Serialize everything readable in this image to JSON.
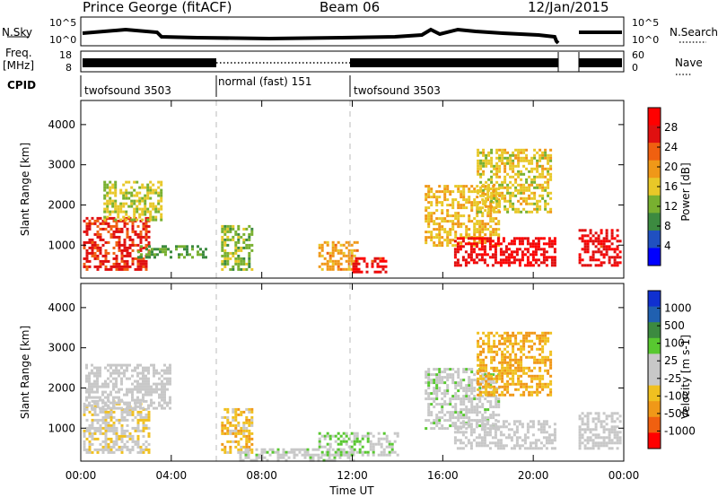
{
  "header": {
    "title": "Prince George (fitACF)",
    "beam": "Beam 06",
    "date": "12/Jan/2015"
  },
  "top_panels": {
    "nsky_label": "N.Sky",
    "nsearch_label": "N.Search",
    "noise_ticks": [
      "10^5",
      "10^0"
    ],
    "freq_label_1": "Freq.",
    "freq_label_2": "[MHz]",
    "freq_ticks": [
      "18",
      "8"
    ],
    "nave_label": "Nave",
    "nave_ticks": [
      "60",
      "0"
    ],
    "cpid_label": "CPID",
    "cpid_segments": [
      {
        "name": "twofsound 3503",
        "start_h": 0,
        "end_h": 6
      },
      {
        "name": "normal (fast) 151",
        "start_h": 6,
        "end_h": 12
      },
      {
        "name": "twofsound 3503",
        "start_h": 12,
        "end_h": 24
      }
    ]
  },
  "chart_data": [
    {
      "type": "heatmap",
      "title": "",
      "xlabel": "Time UT",
      "ylabel": "Slant Range [km]",
      "xlim": [
        0,
        24
      ],
      "ylim": [
        180,
        4600
      ],
      "x_ticks": [
        "00:00",
        "04:00",
        "08:00",
        "12:00",
        "16:00",
        "20:00",
        "00:00"
      ],
      "y_ticks": [
        1000,
        2000,
        3000,
        4000
      ],
      "colorbar": {
        "label": "Power [dB]",
        "ticks": [
          "28",
          "24",
          "20",
          "16",
          "12",
          "8",
          "4"
        ],
        "range": [
          0,
          30
        ]
      },
      "colormap": [
        "#0000ff",
        "#2050c0",
        "#3c8a40",
        "#78b030",
        "#e8c828",
        "#f09818",
        "#f06010",
        "#e01010",
        "#ff0000"
      ],
      "echo_regions": [
        {
          "t": [
            0.1,
            3.0
          ],
          "r": [
            400,
            1700
          ],
          "value": 24
        },
        {
          "t": [
            1.0,
            3.6
          ],
          "r": [
            1600,
            2600
          ],
          "value": 14
        },
        {
          "t": [
            2.5,
            5.5
          ],
          "r": [
            700,
            1000
          ],
          "value": 10
        },
        {
          "t": [
            6.2,
            7.6
          ],
          "r": [
            400,
            1500
          ],
          "value": 12
        },
        {
          "t": [
            10.5,
            12.2
          ],
          "r": [
            400,
            1100
          ],
          "value": 18
        },
        {
          "t": [
            12.0,
            13.5
          ],
          "r": [
            300,
            700
          ],
          "value": 26
        },
        {
          "t": [
            15.2,
            18.5
          ],
          "r": [
            1000,
            2500
          ],
          "value": 16
        },
        {
          "t": [
            16.5,
            21.0
          ],
          "r": [
            500,
            1200
          ],
          "value": 27
        },
        {
          "t": [
            17.5,
            20.8
          ],
          "r": [
            1800,
            3400
          ],
          "value": 15
        },
        {
          "t": [
            22.0,
            23.9
          ],
          "r": [
            500,
            1400
          ],
          "value": 26
        }
      ]
    },
    {
      "type": "heatmap",
      "title": "",
      "xlabel": "Time UT",
      "ylabel": "Slant Range [km]",
      "xlim": [
        0,
        24
      ],
      "ylim": [
        180,
        4600
      ],
      "x_ticks": [
        "00:00",
        "04:00",
        "08:00",
        "12:00",
        "16:00",
        "20:00",
        "00:00"
      ],
      "y_ticks": [
        1000,
        2000,
        3000,
        4000
      ],
      "colorbar": {
        "label": "Velocity [m s-1]",
        "ticks": [
          "1000",
          "500",
          "100",
          "25",
          "-25",
          "-100",
          "-500",
          "-1000"
        ],
        "range": [
          -1000,
          1000
        ]
      },
      "colormap": [
        "#ff0000",
        "#f06010",
        "#f09818",
        "#f0c020",
        "#c8c8c8",
        "#c8c8c8",
        "#58c830",
        "#3c8a40",
        "#2060b0",
        "#1030d0"
      ],
      "echo_regions": [
        {
          "t": [
            0.1,
            3.0
          ],
          "r": [
            400,
            1700
          ],
          "value": -120
        },
        {
          "t": [
            0.2,
            4.0
          ],
          "r": [
            1500,
            2600
          ],
          "value": 0
        },
        {
          "t": [
            6.2,
            7.6
          ],
          "r": [
            400,
            1500
          ],
          "value": -300
        },
        {
          "t": [
            7.0,
            12.0
          ],
          "r": [
            200,
            500
          ],
          "value": 80
        },
        {
          "t": [
            10.5,
            14.0
          ],
          "r": [
            300,
            900
          ],
          "value": 150
        },
        {
          "t": [
            15.2,
            18.5
          ],
          "r": [
            1000,
            2500
          ],
          "value": 60
        },
        {
          "t": [
            16.5,
            21.0
          ],
          "r": [
            500,
            1200
          ],
          "value": 0
        },
        {
          "t": [
            17.5,
            20.8
          ],
          "r": [
            1800,
            3400
          ],
          "value": -400
        },
        {
          "t": [
            22.0,
            23.9
          ],
          "r": [
            500,
            1400
          ],
          "value": 0
        }
      ]
    }
  ]
}
